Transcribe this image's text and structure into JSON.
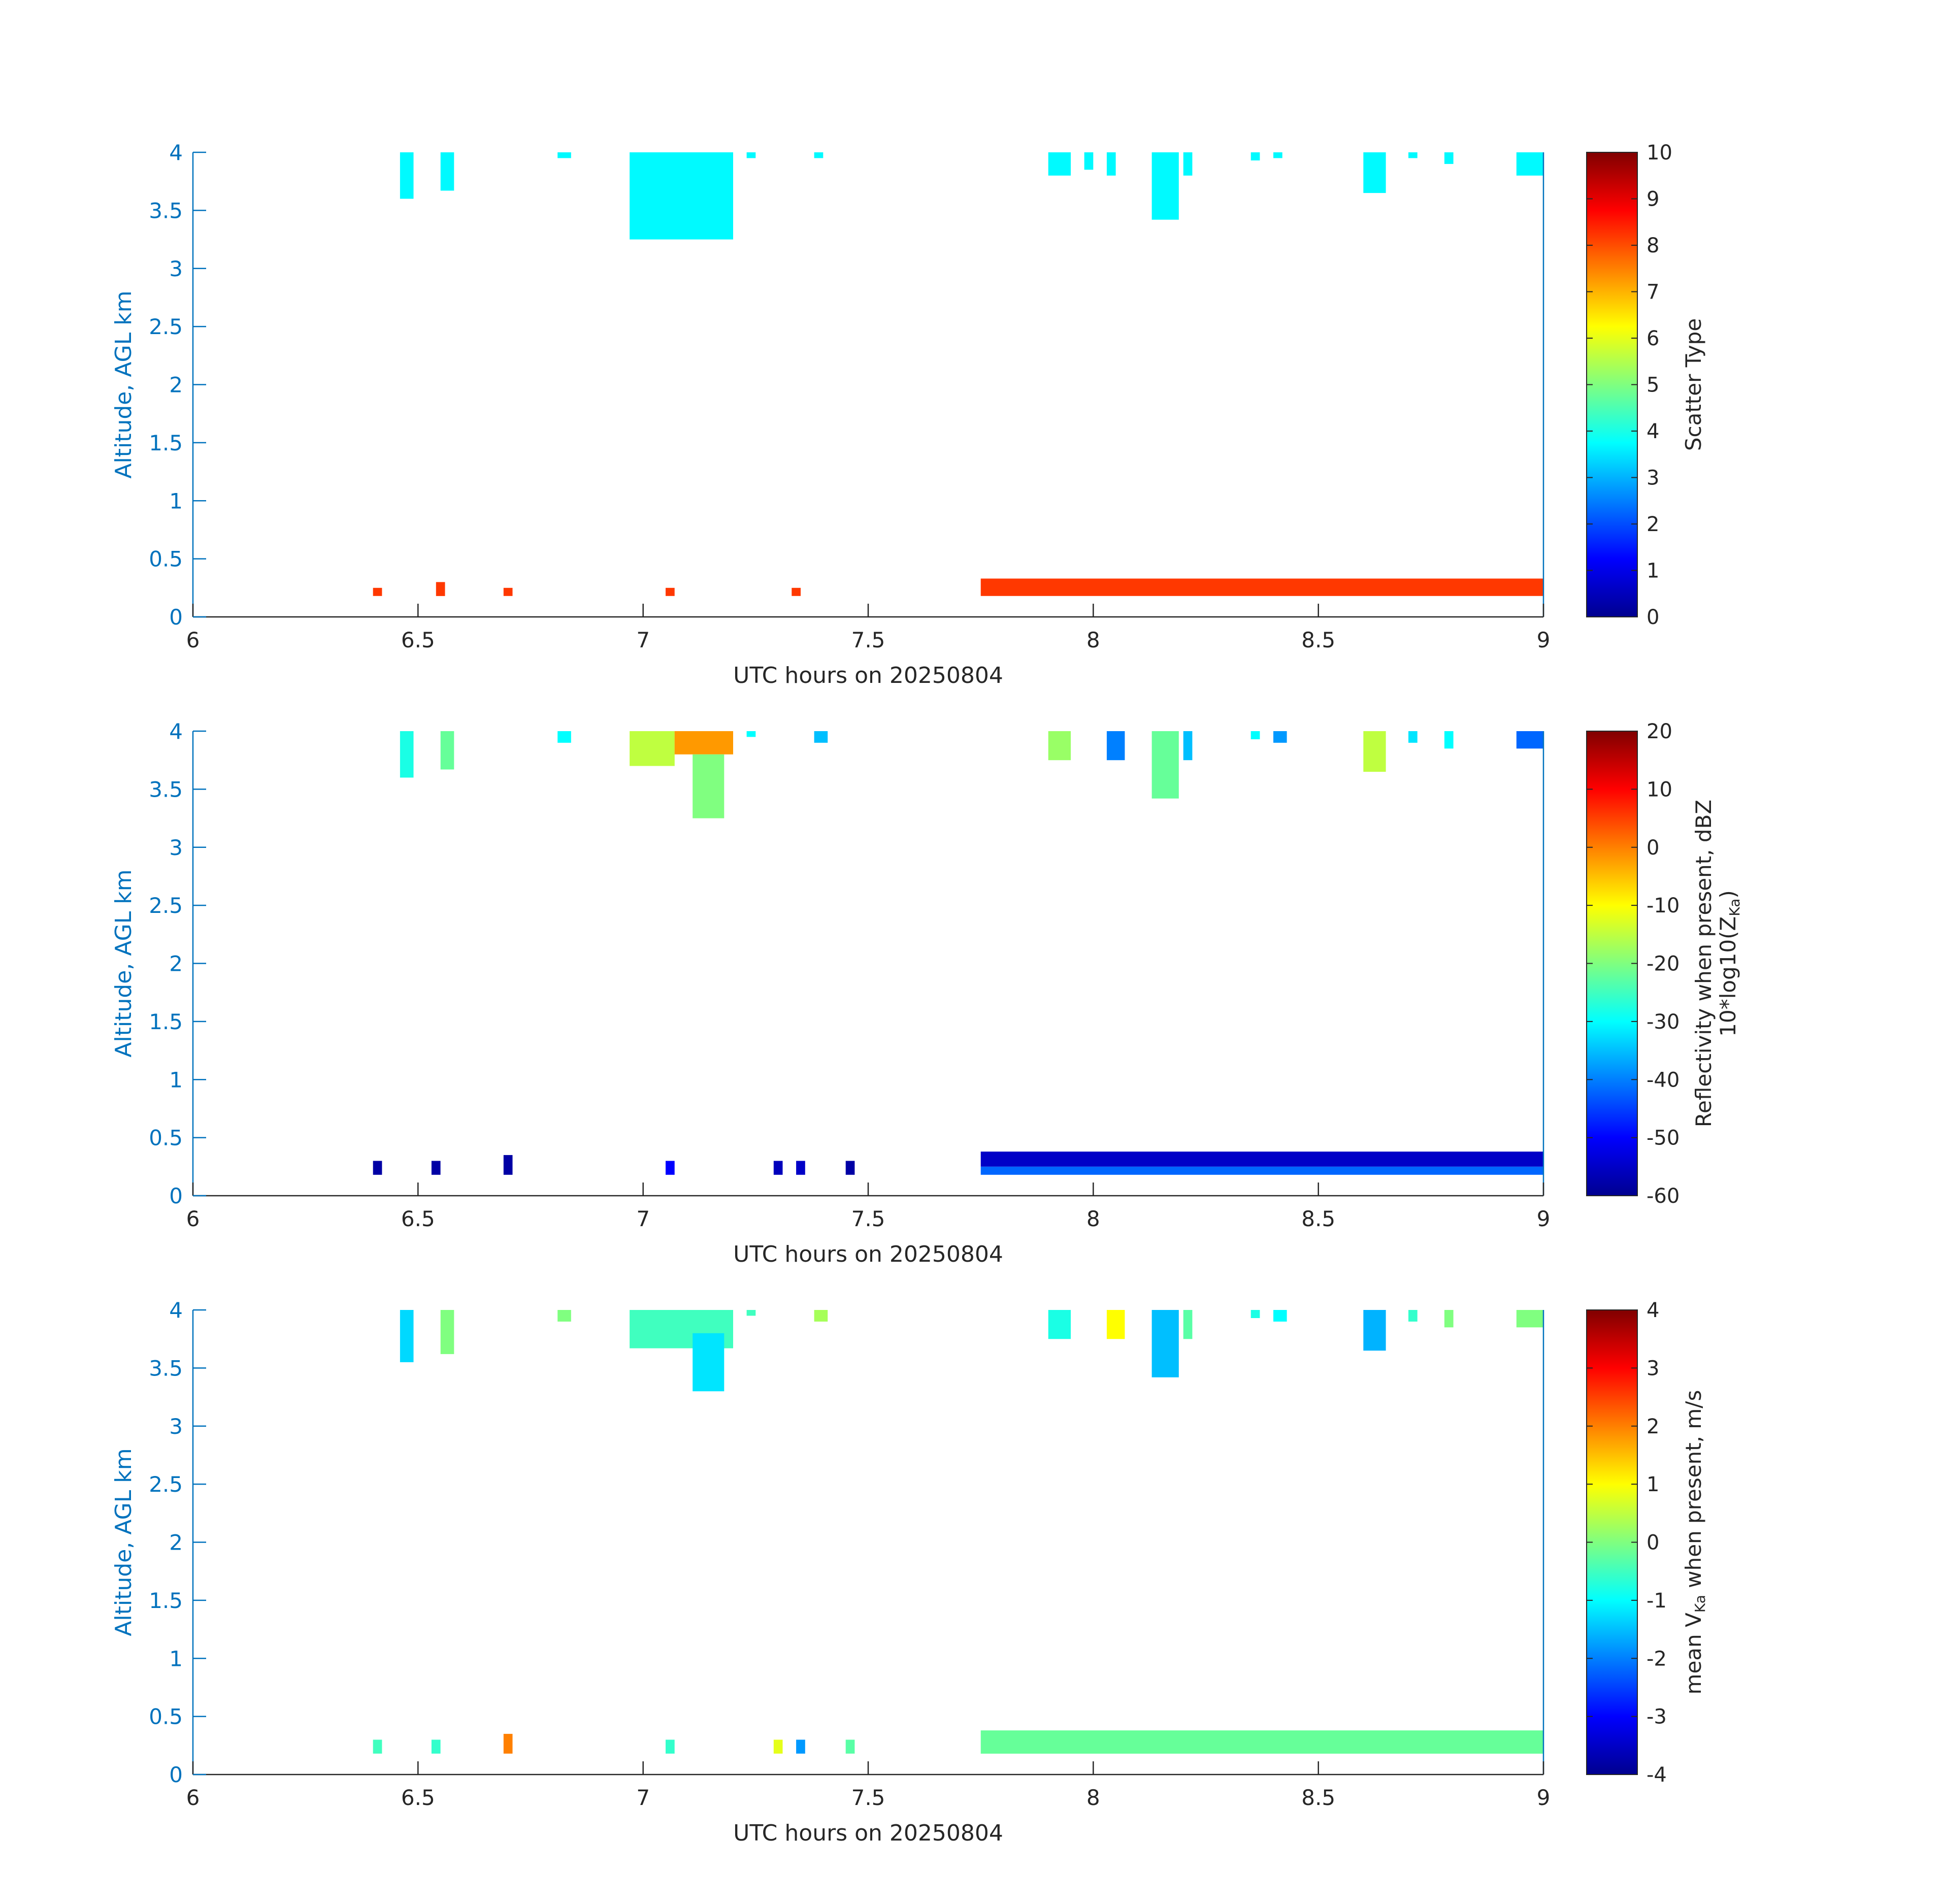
{
  "colors": {
    "axis_blue": "#0072bd",
    "axis_black": "#262626",
    "aerosol_cyan": "#25f2d8",
    "aerosol_red": "#ff4a12",
    "colormap": "jet"
  },
  "chart_data": [
    {
      "type": "heatmap",
      "xlabel": "UTC hours on 20250804",
      "ylabel": "Altitude, AGL km",
      "xlim": [
        6,
        9
      ],
      "ylim": [
        0,
        4
      ],
      "x_ticks": [
        "6",
        "6.5",
        "7",
        "7.5",
        "8",
        "8.5",
        "9"
      ],
      "y_ticks": [
        "0",
        "0.5",
        "1",
        "1.5",
        "2",
        "2.5",
        "3",
        "3.5",
        "4"
      ],
      "colorbar": {
        "label": "Scatter Type",
        "range": [
          0,
          10
        ],
        "ticks": [
          "0",
          "1",
          "2",
          "3",
          "4",
          "5",
          "6",
          "7",
          "8",
          "9",
          "10"
        ]
      },
      "regions": [
        {
          "x": [
            6.46,
            6.49
          ],
          "y": [
            3.6,
            4.0
          ],
          "value": 3.7
        },
        {
          "x": [
            6.55,
            6.58
          ],
          "y": [
            3.67,
            4.0
          ],
          "value": 3.7
        },
        {
          "x": [
            6.81,
            6.84
          ],
          "y": [
            3.95,
            4.0
          ],
          "value": 3.7
        },
        {
          "x": [
            6.97,
            7.2
          ],
          "y": [
            3.25,
            4.0
          ],
          "value": 3.7
        },
        {
          "x": [
            7.23,
            7.25
          ],
          "y": [
            3.95,
            4.0
          ],
          "value": 3.7
        },
        {
          "x": [
            7.38,
            7.4
          ],
          "y": [
            3.95,
            4.0
          ],
          "value": 3.7
        },
        {
          "x": [
            7.9,
            7.95
          ],
          "y": [
            3.8,
            4.0
          ],
          "value": 3.7
        },
        {
          "x": [
            7.98,
            8.0
          ],
          "y": [
            3.85,
            4.0
          ],
          "value": 3.7
        },
        {
          "x": [
            8.03,
            8.05
          ],
          "y": [
            3.8,
            4.0
          ],
          "value": 3.7
        },
        {
          "x": [
            8.13,
            8.19
          ],
          "y": [
            3.42,
            4.0
          ],
          "value": 3.7
        },
        {
          "x": [
            8.2,
            8.22
          ],
          "y": [
            3.8,
            4.0
          ],
          "value": 3.7
        },
        {
          "x": [
            8.35,
            8.37
          ],
          "y": [
            3.93,
            4.0
          ],
          "value": 3.7
        },
        {
          "x": [
            8.4,
            8.42
          ],
          "y": [
            3.95,
            4.0
          ],
          "value": 3.7
        },
        {
          "x": [
            8.6,
            8.65
          ],
          "y": [
            3.65,
            4.0
          ],
          "value": 3.7
        },
        {
          "x": [
            8.7,
            8.72
          ],
          "y": [
            3.95,
            4.0
          ],
          "value": 3.7
        },
        {
          "x": [
            8.78,
            8.8
          ],
          "y": [
            3.9,
            4.0
          ],
          "value": 3.7
        },
        {
          "x": [
            8.94,
            9.0
          ],
          "y": [
            3.8,
            4.0
          ],
          "value": 3.7
        },
        {
          "x": [
            6.4,
            6.42
          ],
          "y": [
            0.18,
            0.25
          ],
          "value": 8.2
        },
        {
          "x": [
            6.54,
            6.56
          ],
          "y": [
            0.18,
            0.3
          ],
          "value": 8.2
        },
        {
          "x": [
            6.69,
            6.71
          ],
          "y": [
            0.18,
            0.25
          ],
          "value": 8.2
        },
        {
          "x": [
            7.05,
            7.07
          ],
          "y": [
            0.18,
            0.25
          ],
          "value": 8.2
        },
        {
          "x": [
            7.33,
            7.35
          ],
          "y": [
            0.18,
            0.25
          ],
          "value": 8.2
        },
        {
          "x": [
            7.75,
            9.0
          ],
          "y": [
            0.18,
            0.33
          ],
          "value": 8.2
        }
      ]
    },
    {
      "type": "heatmap",
      "xlabel": "UTC hours on 20250804",
      "ylabel": "Altitude, AGL km",
      "xlim": [
        6,
        9
      ],
      "ylim": [
        0,
        4
      ],
      "x_ticks": [
        "6",
        "6.5",
        "7",
        "7.5",
        "8",
        "8.5",
        "9"
      ],
      "y_ticks": [
        "0",
        "0.5",
        "1",
        "1.5",
        "2",
        "2.5",
        "3",
        "3.5",
        "4"
      ],
      "colorbar": {
        "label_line1": "Reflectivity when present, dBZ",
        "label_line2_prefix": "10*log10(Z",
        "label_line2_sub": "Ka",
        "label_line2_suffix": ")",
        "range": [
          -60,
          20
        ],
        "ticks": [
          "-60",
          "-50",
          "-40",
          "-30",
          "-20",
          "-10",
          "0",
          "10",
          "20"
        ]
      },
      "regions": [
        {
          "x": [
            6.46,
            6.49
          ],
          "y": [
            3.6,
            4.0
          ],
          "value": -28
        },
        {
          "x": [
            6.55,
            6.58
          ],
          "y": [
            3.67,
            4.0
          ],
          "value": -22
        },
        {
          "x": [
            6.81,
            6.84
          ],
          "y": [
            3.9,
            4.0
          ],
          "value": -30
        },
        {
          "x": [
            6.97,
            7.07
          ],
          "y": [
            3.7,
            4.0
          ],
          "value": -15
        },
        {
          "x": [
            7.07,
            7.2
          ],
          "y": [
            3.8,
            4.0
          ],
          "value": -2
        },
        {
          "x": [
            7.11,
            7.18
          ],
          "y": [
            3.25,
            3.8
          ],
          "value": -20
        },
        {
          "x": [
            7.23,
            7.25
          ],
          "y": [
            3.95,
            4.0
          ],
          "value": -30
        },
        {
          "x": [
            7.38,
            7.41
          ],
          "y": [
            3.9,
            4.0
          ],
          "value": -35
        },
        {
          "x": [
            7.9,
            7.95
          ],
          "y": [
            3.75,
            4.0
          ],
          "value": -18
        },
        {
          "x": [
            8.03,
            8.07
          ],
          "y": [
            3.75,
            4.0
          ],
          "value": -40
        },
        {
          "x": [
            8.13,
            8.19
          ],
          "y": [
            3.42,
            4.0
          ],
          "value": -22
        },
        {
          "x": [
            8.2,
            8.22
          ],
          "y": [
            3.75,
            4.0
          ],
          "value": -35
        },
        {
          "x": [
            8.35,
            8.37
          ],
          "y": [
            3.93,
            4.0
          ],
          "value": -30
        },
        {
          "x": [
            8.4,
            8.43
          ],
          "y": [
            3.9,
            4.0
          ],
          "value": -38
        },
        {
          "x": [
            8.6,
            8.65
          ],
          "y": [
            3.65,
            4.0
          ],
          "value": -15
        },
        {
          "x": [
            8.7,
            8.72
          ],
          "y": [
            3.9,
            4.0
          ],
          "value": -32
        },
        {
          "x": [
            8.78,
            8.8
          ],
          "y": [
            3.85,
            4.0
          ],
          "value": -30
        },
        {
          "x": [
            8.94,
            9.0
          ],
          "y": [
            3.85,
            4.0
          ],
          "value": -42
        },
        {
          "x": [
            6.4,
            6.42
          ],
          "y": [
            0.18,
            0.3
          ],
          "value": -58
        },
        {
          "x": [
            6.53,
            6.55
          ],
          "y": [
            0.18,
            0.3
          ],
          "value": -58
        },
        {
          "x": [
            6.69,
            6.71
          ],
          "y": [
            0.18,
            0.35
          ],
          "value": -58
        },
        {
          "x": [
            7.05,
            7.07
          ],
          "y": [
            0.18,
            0.3
          ],
          "value": -50
        },
        {
          "x": [
            7.29,
            7.31
          ],
          "y": [
            0.18,
            0.3
          ],
          "value": -56
        },
        {
          "x": [
            7.34,
            7.36
          ],
          "y": [
            0.18,
            0.3
          ],
          "value": -55
        },
        {
          "x": [
            7.45,
            7.47
          ],
          "y": [
            0.18,
            0.3
          ],
          "value": -58
        },
        {
          "x": [
            7.75,
            9.0
          ],
          "y": [
            0.25,
            0.38
          ],
          "value": -55
        },
        {
          "x": [
            7.75,
            9.0
          ],
          "y": [
            0.18,
            0.25
          ],
          "value": -42
        }
      ]
    },
    {
      "type": "heatmap",
      "xlabel": "UTC hours on 20250804",
      "ylabel": "Altitude, AGL km",
      "xlim": [
        6,
        9
      ],
      "ylim": [
        0,
        4
      ],
      "x_ticks": [
        "6",
        "6.5",
        "7",
        "7.5",
        "8",
        "8.5",
        "9"
      ],
      "y_ticks": [
        "0",
        "0.5",
        "1",
        "1.5",
        "2",
        "2.5",
        "3",
        "3.5",
        "4"
      ],
      "colorbar": {
        "label_prefix": "mean V",
        "label_sub": "Ka",
        "label_suffix": " when present, m/s",
        "range": [
          -4,
          4
        ],
        "ticks": [
          "-4",
          "-3",
          "-2",
          "-1",
          "0",
          "1",
          "2",
          "3",
          "4"
        ]
      },
      "regions": [
        {
          "x": [
            6.46,
            6.49
          ],
          "y": [
            3.55,
            4.0
          ],
          "value": -1.3
        },
        {
          "x": [
            6.55,
            6.58
          ],
          "y": [
            3.62,
            4.0
          ],
          "value": 0.0
        },
        {
          "x": [
            6.81,
            6.84
          ],
          "y": [
            3.9,
            4.0
          ],
          "value": 0.0
        },
        {
          "x": [
            6.97,
            7.2
          ],
          "y": [
            3.67,
            4.0
          ],
          "value": -0.5
        },
        {
          "x": [
            7.11,
            7.18
          ],
          "y": [
            3.3,
            3.8
          ],
          "value": -1.2
        },
        {
          "x": [
            7.23,
            7.25
          ],
          "y": [
            3.95,
            4.0
          ],
          "value": -0.5
        },
        {
          "x": [
            7.38,
            7.41
          ],
          "y": [
            3.9,
            4.0
          ],
          "value": 0.3
        },
        {
          "x": [
            7.9,
            7.95
          ],
          "y": [
            3.75,
            4.0
          ],
          "value": -0.8
        },
        {
          "x": [
            8.03,
            8.07
          ],
          "y": [
            3.75,
            4.0
          ],
          "value": 1.0
        },
        {
          "x": [
            8.13,
            8.19
          ],
          "y": [
            3.42,
            4.0
          ],
          "value": -1.5
        },
        {
          "x": [
            8.2,
            8.22
          ],
          "y": [
            3.75,
            4.0
          ],
          "value": -0.3
        },
        {
          "x": [
            8.35,
            8.37
          ],
          "y": [
            3.93,
            4.0
          ],
          "value": -0.8
        },
        {
          "x": [
            8.4,
            8.43
          ],
          "y": [
            3.9,
            4.0
          ],
          "value": -1.0
        },
        {
          "x": [
            8.6,
            8.65
          ],
          "y": [
            3.65,
            4.0
          ],
          "value": -1.6
        },
        {
          "x": [
            8.7,
            8.72
          ],
          "y": [
            3.9,
            4.0
          ],
          "value": -0.6
        },
        {
          "x": [
            8.78,
            8.8
          ],
          "y": [
            3.85,
            4.0
          ],
          "value": 0.0
        },
        {
          "x": [
            8.94,
            9.0
          ],
          "y": [
            3.85,
            4.0
          ],
          "value": 0.0
        },
        {
          "x": [
            6.4,
            6.42
          ],
          "y": [
            0.18,
            0.3
          ],
          "value": -0.5
        },
        {
          "x": [
            6.53,
            6.55
          ],
          "y": [
            0.18,
            0.3
          ],
          "value": -0.6
        },
        {
          "x": [
            6.69,
            6.71
          ],
          "y": [
            0.18,
            0.35
          ],
          "value": 2.0
        },
        {
          "x": [
            7.05,
            7.07
          ],
          "y": [
            0.18,
            0.3
          ],
          "value": -0.6
        },
        {
          "x": [
            7.29,
            7.31
          ],
          "y": [
            0.18,
            0.3
          ],
          "value": 0.8
        },
        {
          "x": [
            7.34,
            7.36
          ],
          "y": [
            0.18,
            0.3
          ],
          "value": -1.8
        },
        {
          "x": [
            7.45,
            7.47
          ],
          "y": [
            0.18,
            0.3
          ],
          "value": -0.3
        },
        {
          "x": [
            7.75,
            9.0
          ],
          "y": [
            0.18,
            0.38
          ],
          "value": -0.2
        }
      ]
    }
  ]
}
